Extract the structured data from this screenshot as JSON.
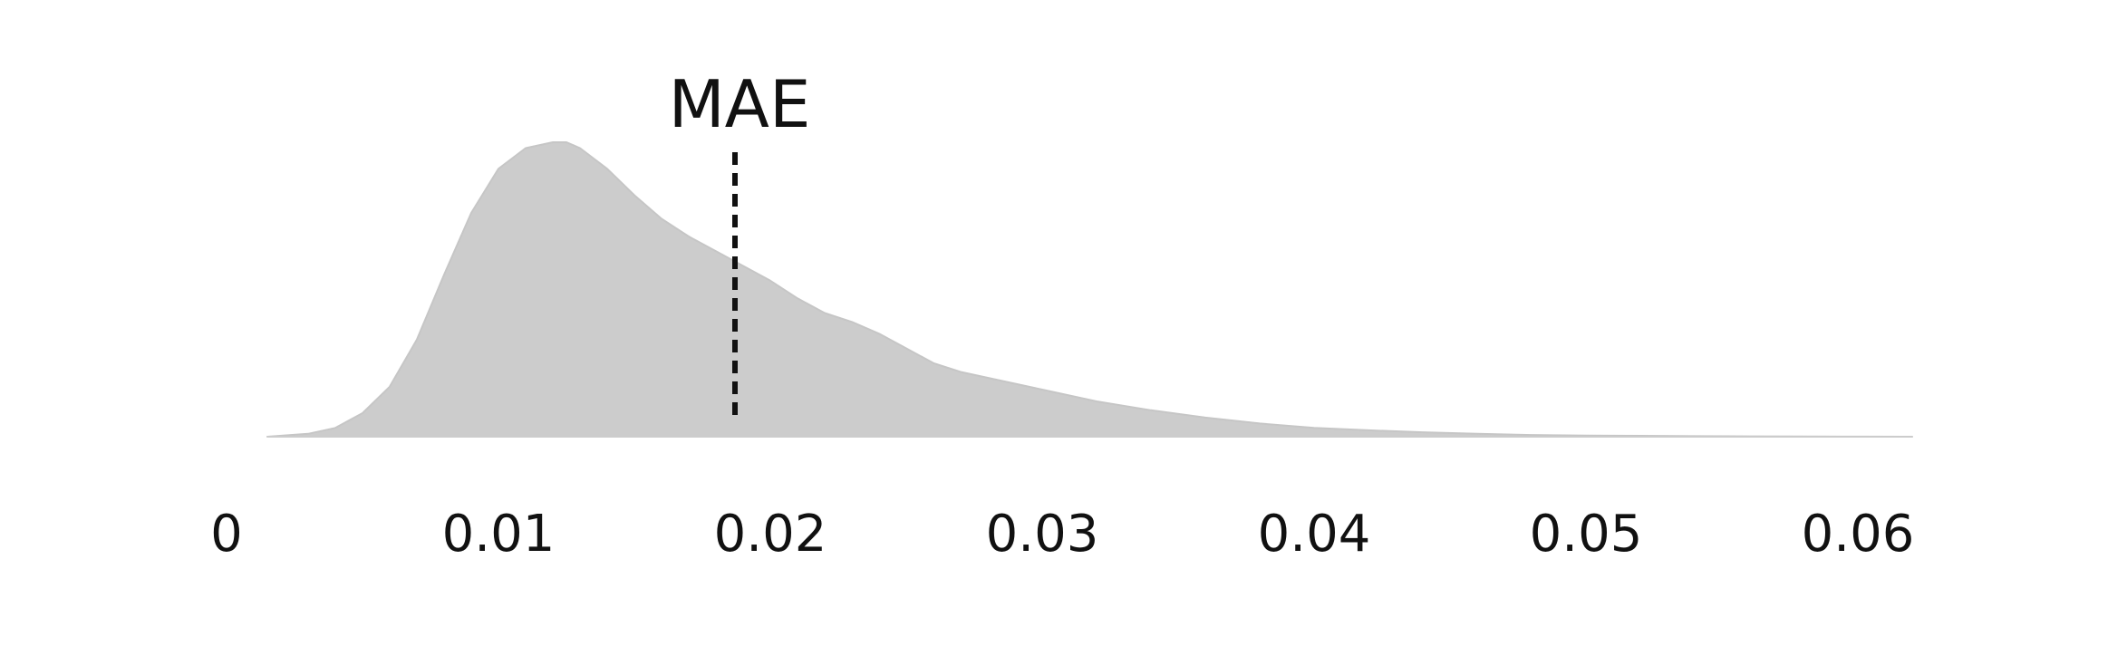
{
  "chart_data": {
    "type": "area",
    "title": "",
    "xlabel": "",
    "ylabel": "",
    "xlim": [
      0,
      0.062
    ],
    "ylim": [
      0,
      1
    ],
    "grid": false,
    "fill_color": "#cccccc",
    "line_color": "#c6c6c6",
    "x_ticks": [
      0,
      0.01,
      0.02,
      0.03,
      0.04,
      0.05,
      0.06
    ],
    "x_tick_labels": [
      "0",
      "0.01",
      "0.02",
      "0.03",
      "0.04",
      "0.05",
      "0.06"
    ],
    "series": [
      {
        "x": [
          0.0015,
          0.003,
          0.004,
          0.005,
          0.006,
          0.007,
          0.008,
          0.009,
          0.01,
          0.011,
          0.012,
          0.0125,
          0.013,
          0.014,
          0.015,
          0.016,
          0.017,
          0.018,
          0.019,
          0.02,
          0.021,
          0.022,
          0.023,
          0.024,
          0.025,
          0.026,
          0.027,
          0.028,
          0.029,
          0.03,
          0.032,
          0.034,
          0.036,
          0.038,
          0.04,
          0.042,
          0.044,
          0.046,
          0.048,
          0.05,
          0.052,
          0.054,
          0.056,
          0.058,
          0.06,
          0.062
        ],
        "y": [
          0.0,
          0.01,
          0.03,
          0.08,
          0.17,
          0.33,
          0.55,
          0.76,
          0.91,
          0.98,
          1.0,
          1.0,
          0.98,
          0.91,
          0.82,
          0.74,
          0.68,
          0.63,
          0.58,
          0.53,
          0.47,
          0.42,
          0.39,
          0.35,
          0.3,
          0.25,
          0.22,
          0.2,
          0.18,
          0.16,
          0.12,
          0.09,
          0.065,
          0.045,
          0.03,
          0.022,
          0.015,
          0.01,
          0.006,
          0.004,
          0.003,
          0.002,
          0.0012,
          0.0006,
          0.0002,
          0.0
        ]
      }
    ],
    "reference_line": {
      "label": "MAE",
      "x": 0.0187,
      "style": "dashed",
      "color": "#111111"
    }
  }
}
